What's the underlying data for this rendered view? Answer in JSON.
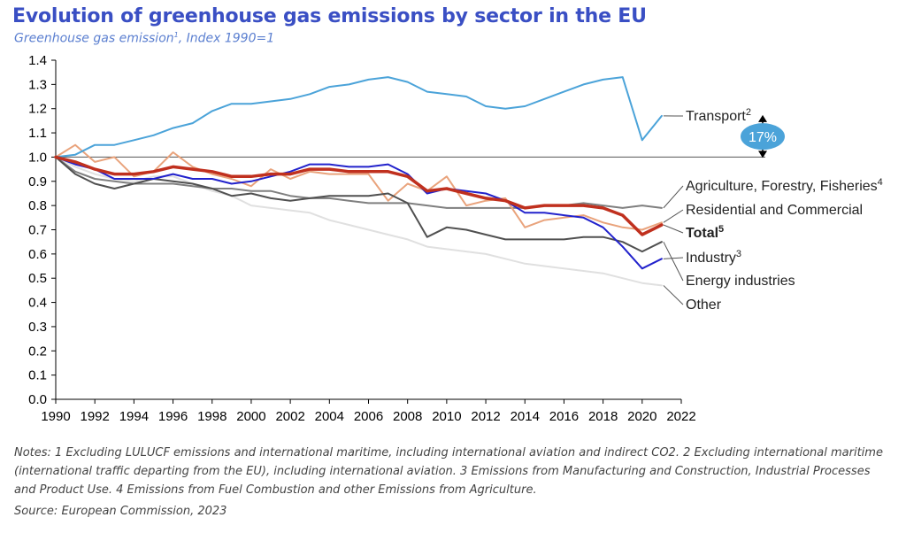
{
  "header": {
    "title": "Evolution of greenhouse gas emissions by sector in the EU",
    "subtitle_main": "Greenhouse gas emission",
    "subtitle_sup": "1",
    "subtitle_rest": ", Index 1990=1"
  },
  "annotation": {
    "badge": "17%",
    "color": "#4ba3d9"
  },
  "footer": {
    "notes": "Notes: 1 Excluding LULUCF emissions and international maritime, including international aviation and indirect CO2. 2 Excluding international maritime (international traffic departing from the EU), including international aviation. 3 Emissions from Manufacturing and Construction, Industrial Processes and Product Use. 4 Emissions from Fuel Combustion and other Emissions from Agriculture.",
    "source": "Source: European Commission, 2023"
  },
  "chart_data": {
    "type": "line",
    "ylim": [
      0,
      1.4
    ],
    "xlim": [
      1990,
      2022
    ],
    "y_ticks": [
      "0.0",
      "0.1",
      "0.2",
      "0.3",
      "0.4",
      "0.5",
      "0.6",
      "0.7",
      "0.8",
      "0.9",
      "1.0",
      "1.1",
      "1.2",
      "1.3",
      "1.4"
    ],
    "x_ticks": [
      "1990",
      "1992",
      "1994",
      "1996",
      "1998",
      "2000",
      "2002",
      "2004",
      "2006",
      "2008",
      "2010",
      "2012",
      "2014",
      "2016",
      "2018",
      "2020",
      "2022"
    ],
    "reference_line": 1.0,
    "grid": false,
    "x": [
      1990,
      1991,
      1992,
      1993,
      1994,
      1995,
      1996,
      1997,
      1998,
      1999,
      2000,
      2001,
      2002,
      2003,
      2004,
      2005,
      2006,
      2007,
      2008,
      2009,
      2010,
      2011,
      2012,
      2013,
      2014,
      2015,
      2016,
      2017,
      2018,
      2019,
      2020,
      2021
    ],
    "series": [
      {
        "name": "Transport",
        "sup": "2",
        "color": "#4ba3d9",
        "width": 2,
        "values": [
          1.0,
          1.01,
          1.05,
          1.05,
          1.07,
          1.09,
          1.12,
          1.14,
          1.19,
          1.22,
          1.22,
          1.23,
          1.24,
          1.26,
          1.29,
          1.3,
          1.32,
          1.33,
          1.31,
          1.27,
          1.26,
          1.25,
          1.21,
          1.2,
          1.21,
          1.24,
          1.27,
          1.3,
          1.32,
          1.33,
          1.07,
          1.17
        ]
      },
      {
        "name": "Agriculture, Forestry, Fisheries",
        "sup": "4",
        "color": "#7f7f7f",
        "width": 2,
        "values": [
          1.0,
          0.94,
          0.91,
          0.9,
          0.89,
          0.89,
          0.89,
          0.88,
          0.87,
          0.87,
          0.86,
          0.86,
          0.84,
          0.83,
          0.83,
          0.82,
          0.81,
          0.81,
          0.81,
          0.8,
          0.79,
          0.79,
          0.79,
          0.79,
          0.79,
          0.8,
          0.8,
          0.81,
          0.8,
          0.79,
          0.8,
          0.79
        ]
      },
      {
        "name": "Residential and Commercial",
        "sup": "",
        "color": "#e9a37c",
        "width": 2,
        "values": [
          1.0,
          1.05,
          0.98,
          1.0,
          0.92,
          0.94,
          1.02,
          0.96,
          0.93,
          0.91,
          0.88,
          0.95,
          0.91,
          0.94,
          0.93,
          0.93,
          0.93,
          0.82,
          0.89,
          0.86,
          0.92,
          0.8,
          0.82,
          0.83,
          0.71,
          0.74,
          0.75,
          0.76,
          0.73,
          0.71,
          0.7,
          0.73
        ]
      },
      {
        "name": "Total",
        "sup": "5",
        "bold": true,
        "color": "#c0301e",
        "width": 3.5,
        "values": [
          1.0,
          0.98,
          0.95,
          0.93,
          0.93,
          0.94,
          0.96,
          0.95,
          0.94,
          0.92,
          0.92,
          0.93,
          0.93,
          0.95,
          0.95,
          0.94,
          0.94,
          0.94,
          0.92,
          0.86,
          0.87,
          0.85,
          0.83,
          0.82,
          0.79,
          0.8,
          0.8,
          0.8,
          0.79,
          0.76,
          0.68,
          0.72
        ]
      },
      {
        "name": "Industry",
        "sup": "3",
        "color": "#2222cc",
        "width": 2,
        "values": [
          1.0,
          0.97,
          0.95,
          0.91,
          0.91,
          0.91,
          0.93,
          0.91,
          0.91,
          0.89,
          0.9,
          0.92,
          0.94,
          0.97,
          0.97,
          0.96,
          0.96,
          0.97,
          0.93,
          0.85,
          0.87,
          0.86,
          0.85,
          0.82,
          0.77,
          0.77,
          0.76,
          0.75,
          0.71,
          0.63,
          0.54,
          0.58
        ]
      },
      {
        "name": "Energy industries",
        "sup": "",
        "color": "#505050",
        "width": 2,
        "values": [
          1.0,
          0.93,
          0.89,
          0.87,
          0.89,
          0.91,
          0.9,
          0.89,
          0.87,
          0.84,
          0.85,
          0.83,
          0.82,
          0.83,
          0.84,
          0.84,
          0.84,
          0.85,
          0.81,
          0.67,
          0.71,
          0.7,
          0.68,
          0.66,
          0.66,
          0.66,
          0.66,
          0.67,
          0.67,
          0.65,
          0.61,
          0.65
        ]
      },
      {
        "name": "Other",
        "sup": "",
        "color": "#e0e0e0",
        "width": 2,
        "values": [
          1.0,
          0.96,
          0.93,
          0.91,
          0.9,
          0.92,
          0.92,
          0.89,
          0.86,
          0.84,
          0.8,
          0.79,
          0.78,
          0.77,
          0.74,
          0.72,
          0.7,
          0.68,
          0.66,
          0.63,
          0.62,
          0.61,
          0.6,
          0.58,
          0.56,
          0.55,
          0.54,
          0.53,
          0.52,
          0.5,
          0.48,
          0.47
        ]
      }
    ]
  }
}
